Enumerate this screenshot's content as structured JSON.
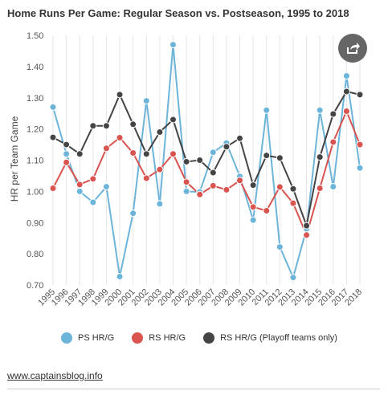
{
  "title": "Home Runs Per Game: Regular Season vs. Postseason, 1995 to 2018",
  "footer": {
    "link_text": "www.captainsblog.info"
  },
  "chart_data": {
    "type": "line",
    "title": "Home Runs Per Game: Regular Season vs. Postseason, 1995 to 2018",
    "xlabel": "",
    "ylabel": "HR per Team Game",
    "ylim": [
      0.7,
      1.5
    ],
    "yticks": [
      "0.70",
      "0.80",
      "0.90",
      "1.00",
      "1.10",
      "1.20",
      "1.30",
      "1.40",
      "1.50"
    ],
    "categories": [
      "1995",
      "1996",
      "1997",
      "1998",
      "1999",
      "2000",
      "2001",
      "2002",
      "2003",
      "2004",
      "2005",
      "2006",
      "2007",
      "2008",
      "2009",
      "2010",
      "2011",
      "2012",
      "2013",
      "2014",
      "2015",
      "2016",
      "2017",
      "2018"
    ],
    "grid": "vertical",
    "legend_position": "bottom",
    "series": [
      {
        "name": "PS HR/G",
        "color": "#6cb4da",
        "values": [
          1.27,
          1.12,
          1.0,
          0.965,
          1.015,
          0.727,
          0.93,
          1.29,
          0.96,
          1.47,
          1.0,
          0.998,
          1.125,
          1.155,
          1.048,
          0.908,
          1.26,
          0.822,
          0.724,
          0.88,
          1.26,
          1.015,
          1.37,
          1.075
        ]
      },
      {
        "name": "RS HR/G",
        "color": "#d9534f",
        "values": [
          1.01,
          1.093,
          1.022,
          1.04,
          1.138,
          1.172,
          1.123,
          1.042,
          1.07,
          1.12,
          1.03,
          0.99,
          1.018,
          1.005,
          1.035,
          0.95,
          0.938,
          1.014,
          0.962,
          0.86,
          1.01,
          1.158,
          1.257,
          1.15
        ]
      },
      {
        "name": "RS HR/G (Playoff teams only)",
        "color": "#444444",
        "values": [
          1.173,
          1.15,
          1.12,
          1.21,
          1.21,
          1.31,
          1.215,
          1.12,
          1.19,
          1.23,
          1.095,
          1.1,
          1.06,
          1.143,
          1.17,
          1.02,
          1.115,
          1.107,
          1.008,
          0.89,
          1.11,
          1.248,
          1.32,
          1.31
        ]
      }
    ]
  }
}
